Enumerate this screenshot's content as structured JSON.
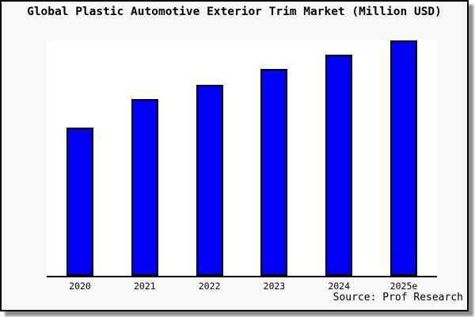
{
  "card": {
    "background": "#f8f8f8",
    "border_color": "#000000",
    "shadow_color": "#737373"
  },
  "source": {
    "text": "Source: Prof Research"
  },
  "chart_data": {
    "type": "bar",
    "title": "Global Plastic Automotive Exterior Trim Market (Million USD)",
    "categories": [
      "2020",
      "2021",
      "2022",
      "2023",
      "2024",
      "2025e"
    ],
    "values": [
      63,
      75,
      81,
      88,
      94,
      100
    ],
    "value_note": "no y-axis scale shown; values are relative bar heights as % of tallest bar",
    "xlabel": "",
    "ylabel": "",
    "ylim": [
      0,
      100
    ],
    "grid": false,
    "legend": false,
    "plot_background": "#ffffff",
    "bar_color": "#0000f5",
    "bar_border_color": "#000000",
    "axis_color": "#000000"
  }
}
